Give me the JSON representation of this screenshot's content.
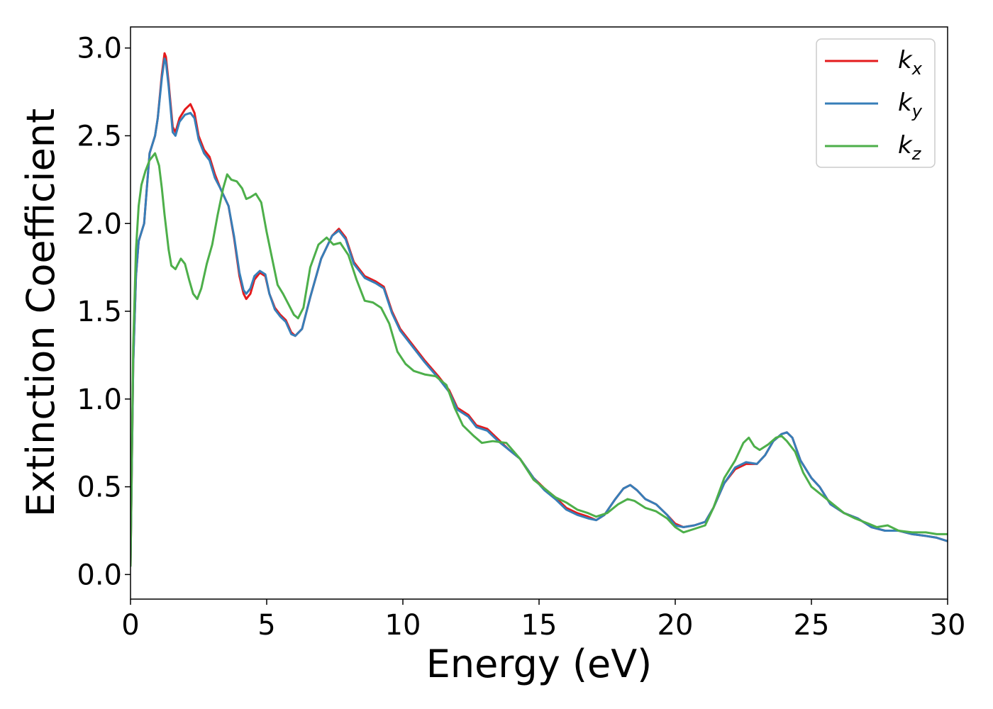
{
  "chart_data": {
    "type": "line",
    "xlabel": "Energy (eV)",
    "ylabel": "Extinction Coefficient",
    "xlim": [
      0,
      30
    ],
    "ylim": [
      -0.14,
      3.12
    ],
    "xticks": [
      0,
      5,
      10,
      15,
      20,
      25,
      30
    ],
    "yticks": [
      0.0,
      0.5,
      1.0,
      1.5,
      2.0,
      2.5,
      3.0
    ],
    "xtick_labels": [
      "0",
      "5",
      "10",
      "15",
      "20",
      "25",
      "30"
    ],
    "ytick_labels": [
      "0.0",
      "0.5",
      "1.0",
      "1.5",
      "2.0",
      "2.5",
      "3.0"
    ],
    "grid": false,
    "legend_position": "top-right",
    "series": [
      {
        "name": "k",
        "subscript": "x",
        "color": "#e41a1c",
        "points": [
          [
            0,
            0.05
          ],
          [
            0.1,
            1.2
          ],
          [
            0.2,
            1.7
          ],
          [
            0.3,
            1.9
          ],
          [
            0.5,
            2.0
          ],
          [
            0.6,
            2.2
          ],
          [
            0.7,
            2.4
          ],
          [
            0.9,
            2.5
          ],
          [
            1.0,
            2.6
          ],
          [
            1.15,
            2.85
          ],
          [
            1.25,
            2.97
          ],
          [
            1.3,
            2.95
          ],
          [
            1.4,
            2.8
          ],
          [
            1.55,
            2.55
          ],
          [
            1.65,
            2.52
          ],
          [
            1.8,
            2.6
          ],
          [
            2.0,
            2.65
          ],
          [
            2.2,
            2.68
          ],
          [
            2.35,
            2.63
          ],
          [
            2.5,
            2.5
          ],
          [
            2.7,
            2.42
          ],
          [
            2.9,
            2.38
          ],
          [
            3.1,
            2.28
          ],
          [
            3.3,
            2.2
          ],
          [
            3.6,
            2.1
          ],
          [
            3.8,
            1.92
          ],
          [
            4.0,
            1.7
          ],
          [
            4.15,
            1.6
          ],
          [
            4.25,
            1.57
          ],
          [
            4.4,
            1.6
          ],
          [
            4.55,
            1.68
          ],
          [
            4.75,
            1.72
          ],
          [
            4.95,
            1.7
          ],
          [
            5.1,
            1.6
          ],
          [
            5.3,
            1.52
          ],
          [
            5.5,
            1.48
          ],
          [
            5.7,
            1.45
          ],
          [
            5.9,
            1.38
          ],
          [
            6.05,
            1.36
          ],
          [
            6.3,
            1.4
          ],
          [
            6.6,
            1.58
          ],
          [
            7.0,
            1.8
          ],
          [
            7.4,
            1.93
          ],
          [
            7.65,
            1.97
          ],
          [
            7.9,
            1.92
          ],
          [
            8.2,
            1.78
          ],
          [
            8.6,
            1.7
          ],
          [
            9.0,
            1.67
          ],
          [
            9.3,
            1.64
          ],
          [
            9.6,
            1.5
          ],
          [
            9.9,
            1.4
          ],
          [
            10.3,
            1.32
          ],
          [
            10.8,
            1.22
          ],
          [
            11.3,
            1.13
          ],
          [
            11.7,
            1.05
          ],
          [
            12.0,
            0.95
          ],
          [
            12.4,
            0.91
          ],
          [
            12.7,
            0.85
          ],
          [
            13.1,
            0.83
          ],
          [
            13.5,
            0.77
          ],
          [
            13.9,
            0.71
          ],
          [
            14.3,
            0.66
          ],
          [
            14.8,
            0.55
          ],
          [
            15.2,
            0.49
          ],
          [
            15.6,
            0.44
          ],
          [
            16.0,
            0.38
          ],
          [
            16.4,
            0.35
          ],
          [
            16.8,
            0.33
          ],
          [
            17.1,
            0.31
          ],
          [
            17.4,
            0.34
          ],
          [
            17.8,
            0.43
          ],
          [
            18.1,
            0.49
          ],
          [
            18.35,
            0.51
          ],
          [
            18.6,
            0.48
          ],
          [
            18.9,
            0.43
          ],
          [
            19.3,
            0.4
          ],
          [
            19.7,
            0.34
          ],
          [
            20.0,
            0.29
          ],
          [
            20.3,
            0.27
          ],
          [
            20.7,
            0.28
          ],
          [
            21.1,
            0.3
          ],
          [
            21.4,
            0.38
          ],
          [
            21.8,
            0.52
          ],
          [
            22.2,
            0.6
          ],
          [
            22.6,
            0.63
          ],
          [
            23.0,
            0.63
          ],
          [
            23.3,
            0.68
          ],
          [
            23.6,
            0.76
          ],
          [
            23.9,
            0.8
          ],
          [
            24.1,
            0.81
          ],
          [
            24.3,
            0.78
          ],
          [
            24.6,
            0.65
          ],
          [
            25.0,
            0.55
          ],
          [
            25.3,
            0.5
          ],
          [
            25.7,
            0.4
          ],
          [
            26.2,
            0.35
          ],
          [
            26.7,
            0.32
          ],
          [
            27.2,
            0.27
          ],
          [
            27.7,
            0.25
          ],
          [
            28.2,
            0.25
          ],
          [
            28.7,
            0.23
          ],
          [
            29.2,
            0.22
          ],
          [
            29.6,
            0.21
          ],
          [
            30.0,
            0.19
          ]
        ]
      },
      {
        "name": "k",
        "subscript": "y",
        "color": "#377eb8",
        "points": [
          [
            0,
            0.05
          ],
          [
            0.1,
            1.2
          ],
          [
            0.2,
            1.7
          ],
          [
            0.3,
            1.9
          ],
          [
            0.5,
            2.0
          ],
          [
            0.6,
            2.2
          ],
          [
            0.7,
            2.4
          ],
          [
            0.9,
            2.5
          ],
          [
            1.0,
            2.6
          ],
          [
            1.15,
            2.83
          ],
          [
            1.25,
            2.94
          ],
          [
            1.3,
            2.92
          ],
          [
            1.4,
            2.78
          ],
          [
            1.55,
            2.52
          ],
          [
            1.65,
            2.5
          ],
          [
            1.8,
            2.58
          ],
          [
            2.0,
            2.62
          ],
          [
            2.2,
            2.63
          ],
          [
            2.35,
            2.6
          ],
          [
            2.5,
            2.48
          ],
          [
            2.7,
            2.4
          ],
          [
            2.9,
            2.36
          ],
          [
            3.1,
            2.26
          ],
          [
            3.3,
            2.2
          ],
          [
            3.6,
            2.1
          ],
          [
            3.8,
            1.93
          ],
          [
            4.0,
            1.72
          ],
          [
            4.15,
            1.62
          ],
          [
            4.25,
            1.6
          ],
          [
            4.4,
            1.63
          ],
          [
            4.55,
            1.7
          ],
          [
            4.75,
            1.73
          ],
          [
            4.95,
            1.71
          ],
          [
            5.1,
            1.6
          ],
          [
            5.3,
            1.51
          ],
          [
            5.5,
            1.47
          ],
          [
            5.7,
            1.44
          ],
          [
            5.9,
            1.37
          ],
          [
            6.05,
            1.36
          ],
          [
            6.3,
            1.4
          ],
          [
            6.6,
            1.58
          ],
          [
            7.0,
            1.8
          ],
          [
            7.4,
            1.93
          ],
          [
            7.65,
            1.96
          ],
          [
            7.9,
            1.91
          ],
          [
            8.2,
            1.77
          ],
          [
            8.6,
            1.69
          ],
          [
            9.0,
            1.66
          ],
          [
            9.3,
            1.63
          ],
          [
            9.6,
            1.49
          ],
          [
            9.9,
            1.39
          ],
          [
            10.3,
            1.31
          ],
          [
            10.8,
            1.21
          ],
          [
            11.3,
            1.12
          ],
          [
            11.7,
            1.04
          ],
          [
            12.0,
            0.94
          ],
          [
            12.4,
            0.9
          ],
          [
            12.7,
            0.84
          ],
          [
            13.1,
            0.82
          ],
          [
            13.5,
            0.76
          ],
          [
            13.9,
            0.71
          ],
          [
            14.3,
            0.66
          ],
          [
            14.8,
            0.55
          ],
          [
            15.2,
            0.48
          ],
          [
            15.6,
            0.43
          ],
          [
            16.0,
            0.37
          ],
          [
            16.4,
            0.34
          ],
          [
            16.8,
            0.32
          ],
          [
            17.1,
            0.31
          ],
          [
            17.4,
            0.34
          ],
          [
            17.8,
            0.43
          ],
          [
            18.1,
            0.49
          ],
          [
            18.35,
            0.51
          ],
          [
            18.6,
            0.48
          ],
          [
            18.9,
            0.43
          ],
          [
            19.3,
            0.4
          ],
          [
            19.7,
            0.34
          ],
          [
            20.0,
            0.28
          ],
          [
            20.3,
            0.27
          ],
          [
            20.7,
            0.28
          ],
          [
            21.1,
            0.3
          ],
          [
            21.4,
            0.38
          ],
          [
            21.8,
            0.52
          ],
          [
            22.2,
            0.61
          ],
          [
            22.6,
            0.64
          ],
          [
            23.0,
            0.63
          ],
          [
            23.3,
            0.68
          ],
          [
            23.6,
            0.76
          ],
          [
            23.9,
            0.8
          ],
          [
            24.1,
            0.81
          ],
          [
            24.3,
            0.78
          ],
          [
            24.6,
            0.65
          ],
          [
            25.0,
            0.55
          ],
          [
            25.3,
            0.5
          ],
          [
            25.7,
            0.4
          ],
          [
            26.2,
            0.35
          ],
          [
            26.7,
            0.32
          ],
          [
            27.2,
            0.27
          ],
          [
            27.7,
            0.25
          ],
          [
            28.2,
            0.25
          ],
          [
            28.7,
            0.23
          ],
          [
            29.2,
            0.22
          ],
          [
            29.6,
            0.21
          ],
          [
            30.0,
            0.19
          ]
        ]
      },
      {
        "name": "k",
        "subscript": "z",
        "color": "#4daf4a",
        "points": [
          [
            0,
            0.05
          ],
          [
            0.1,
            1.3
          ],
          [
            0.2,
            1.85
          ],
          [
            0.3,
            2.1
          ],
          [
            0.4,
            2.22
          ],
          [
            0.55,
            2.3
          ],
          [
            0.7,
            2.36
          ],
          [
            0.9,
            2.4
          ],
          [
            1.05,
            2.33
          ],
          [
            1.15,
            2.2
          ],
          [
            1.25,
            2.05
          ],
          [
            1.4,
            1.85
          ],
          [
            1.5,
            1.76
          ],
          [
            1.65,
            1.74
          ],
          [
            1.85,
            1.8
          ],
          [
            2.0,
            1.77
          ],
          [
            2.15,
            1.68
          ],
          [
            2.3,
            1.6
          ],
          [
            2.45,
            1.57
          ],
          [
            2.6,
            1.63
          ],
          [
            2.8,
            1.77
          ],
          [
            3.0,
            1.88
          ],
          [
            3.2,
            2.05
          ],
          [
            3.4,
            2.2
          ],
          [
            3.55,
            2.28
          ],
          [
            3.7,
            2.25
          ],
          [
            3.9,
            2.24
          ],
          [
            4.1,
            2.2
          ],
          [
            4.25,
            2.14
          ],
          [
            4.4,
            2.15
          ],
          [
            4.6,
            2.17
          ],
          [
            4.8,
            2.12
          ],
          [
            5.0,
            1.95
          ],
          [
            5.2,
            1.8
          ],
          [
            5.4,
            1.65
          ],
          [
            5.6,
            1.6
          ],
          [
            5.8,
            1.54
          ],
          [
            6.0,
            1.48
          ],
          [
            6.15,
            1.46
          ],
          [
            6.35,
            1.52
          ],
          [
            6.6,
            1.75
          ],
          [
            6.9,
            1.88
          ],
          [
            7.2,
            1.92
          ],
          [
            7.45,
            1.88
          ],
          [
            7.7,
            1.89
          ],
          [
            8.0,
            1.82
          ],
          [
            8.3,
            1.68
          ],
          [
            8.6,
            1.56
          ],
          [
            8.9,
            1.55
          ],
          [
            9.2,
            1.52
          ],
          [
            9.5,
            1.43
          ],
          [
            9.8,
            1.27
          ],
          [
            10.1,
            1.2
          ],
          [
            10.4,
            1.16
          ],
          [
            10.8,
            1.14
          ],
          [
            11.2,
            1.13
          ],
          [
            11.6,
            1.08
          ],
          [
            11.9,
            0.95
          ],
          [
            12.2,
            0.85
          ],
          [
            12.6,
            0.79
          ],
          [
            12.9,
            0.75
          ],
          [
            13.3,
            0.76
          ],
          [
            13.8,
            0.75
          ],
          [
            14.3,
            0.66
          ],
          [
            14.8,
            0.54
          ],
          [
            15.2,
            0.49
          ],
          [
            15.6,
            0.44
          ],
          [
            16.0,
            0.41
          ],
          [
            16.4,
            0.37
          ],
          [
            16.8,
            0.35
          ],
          [
            17.1,
            0.33
          ],
          [
            17.5,
            0.35
          ],
          [
            17.9,
            0.4
          ],
          [
            18.25,
            0.43
          ],
          [
            18.5,
            0.42
          ],
          [
            18.9,
            0.38
          ],
          [
            19.3,
            0.36
          ],
          [
            19.7,
            0.32
          ],
          [
            20.0,
            0.27
          ],
          [
            20.3,
            0.24
          ],
          [
            20.7,
            0.26
          ],
          [
            21.1,
            0.28
          ],
          [
            21.4,
            0.38
          ],
          [
            21.8,
            0.55
          ],
          [
            22.2,
            0.65
          ],
          [
            22.5,
            0.75
          ],
          [
            22.7,
            0.78
          ],
          [
            22.9,
            0.73
          ],
          [
            23.1,
            0.71
          ],
          [
            23.4,
            0.74
          ],
          [
            23.7,
            0.78
          ],
          [
            23.9,
            0.79
          ],
          [
            24.1,
            0.76
          ],
          [
            24.4,
            0.7
          ],
          [
            24.7,
            0.58
          ],
          [
            25.0,
            0.5
          ],
          [
            25.4,
            0.45
          ],
          [
            25.8,
            0.4
          ],
          [
            26.2,
            0.35
          ],
          [
            26.6,
            0.32
          ],
          [
            27.1,
            0.29
          ],
          [
            27.4,
            0.27
          ],
          [
            27.8,
            0.28
          ],
          [
            28.2,
            0.25
          ],
          [
            28.7,
            0.24
          ],
          [
            29.2,
            0.24
          ],
          [
            29.6,
            0.23
          ],
          [
            30.0,
            0.23
          ]
        ]
      }
    ]
  }
}
